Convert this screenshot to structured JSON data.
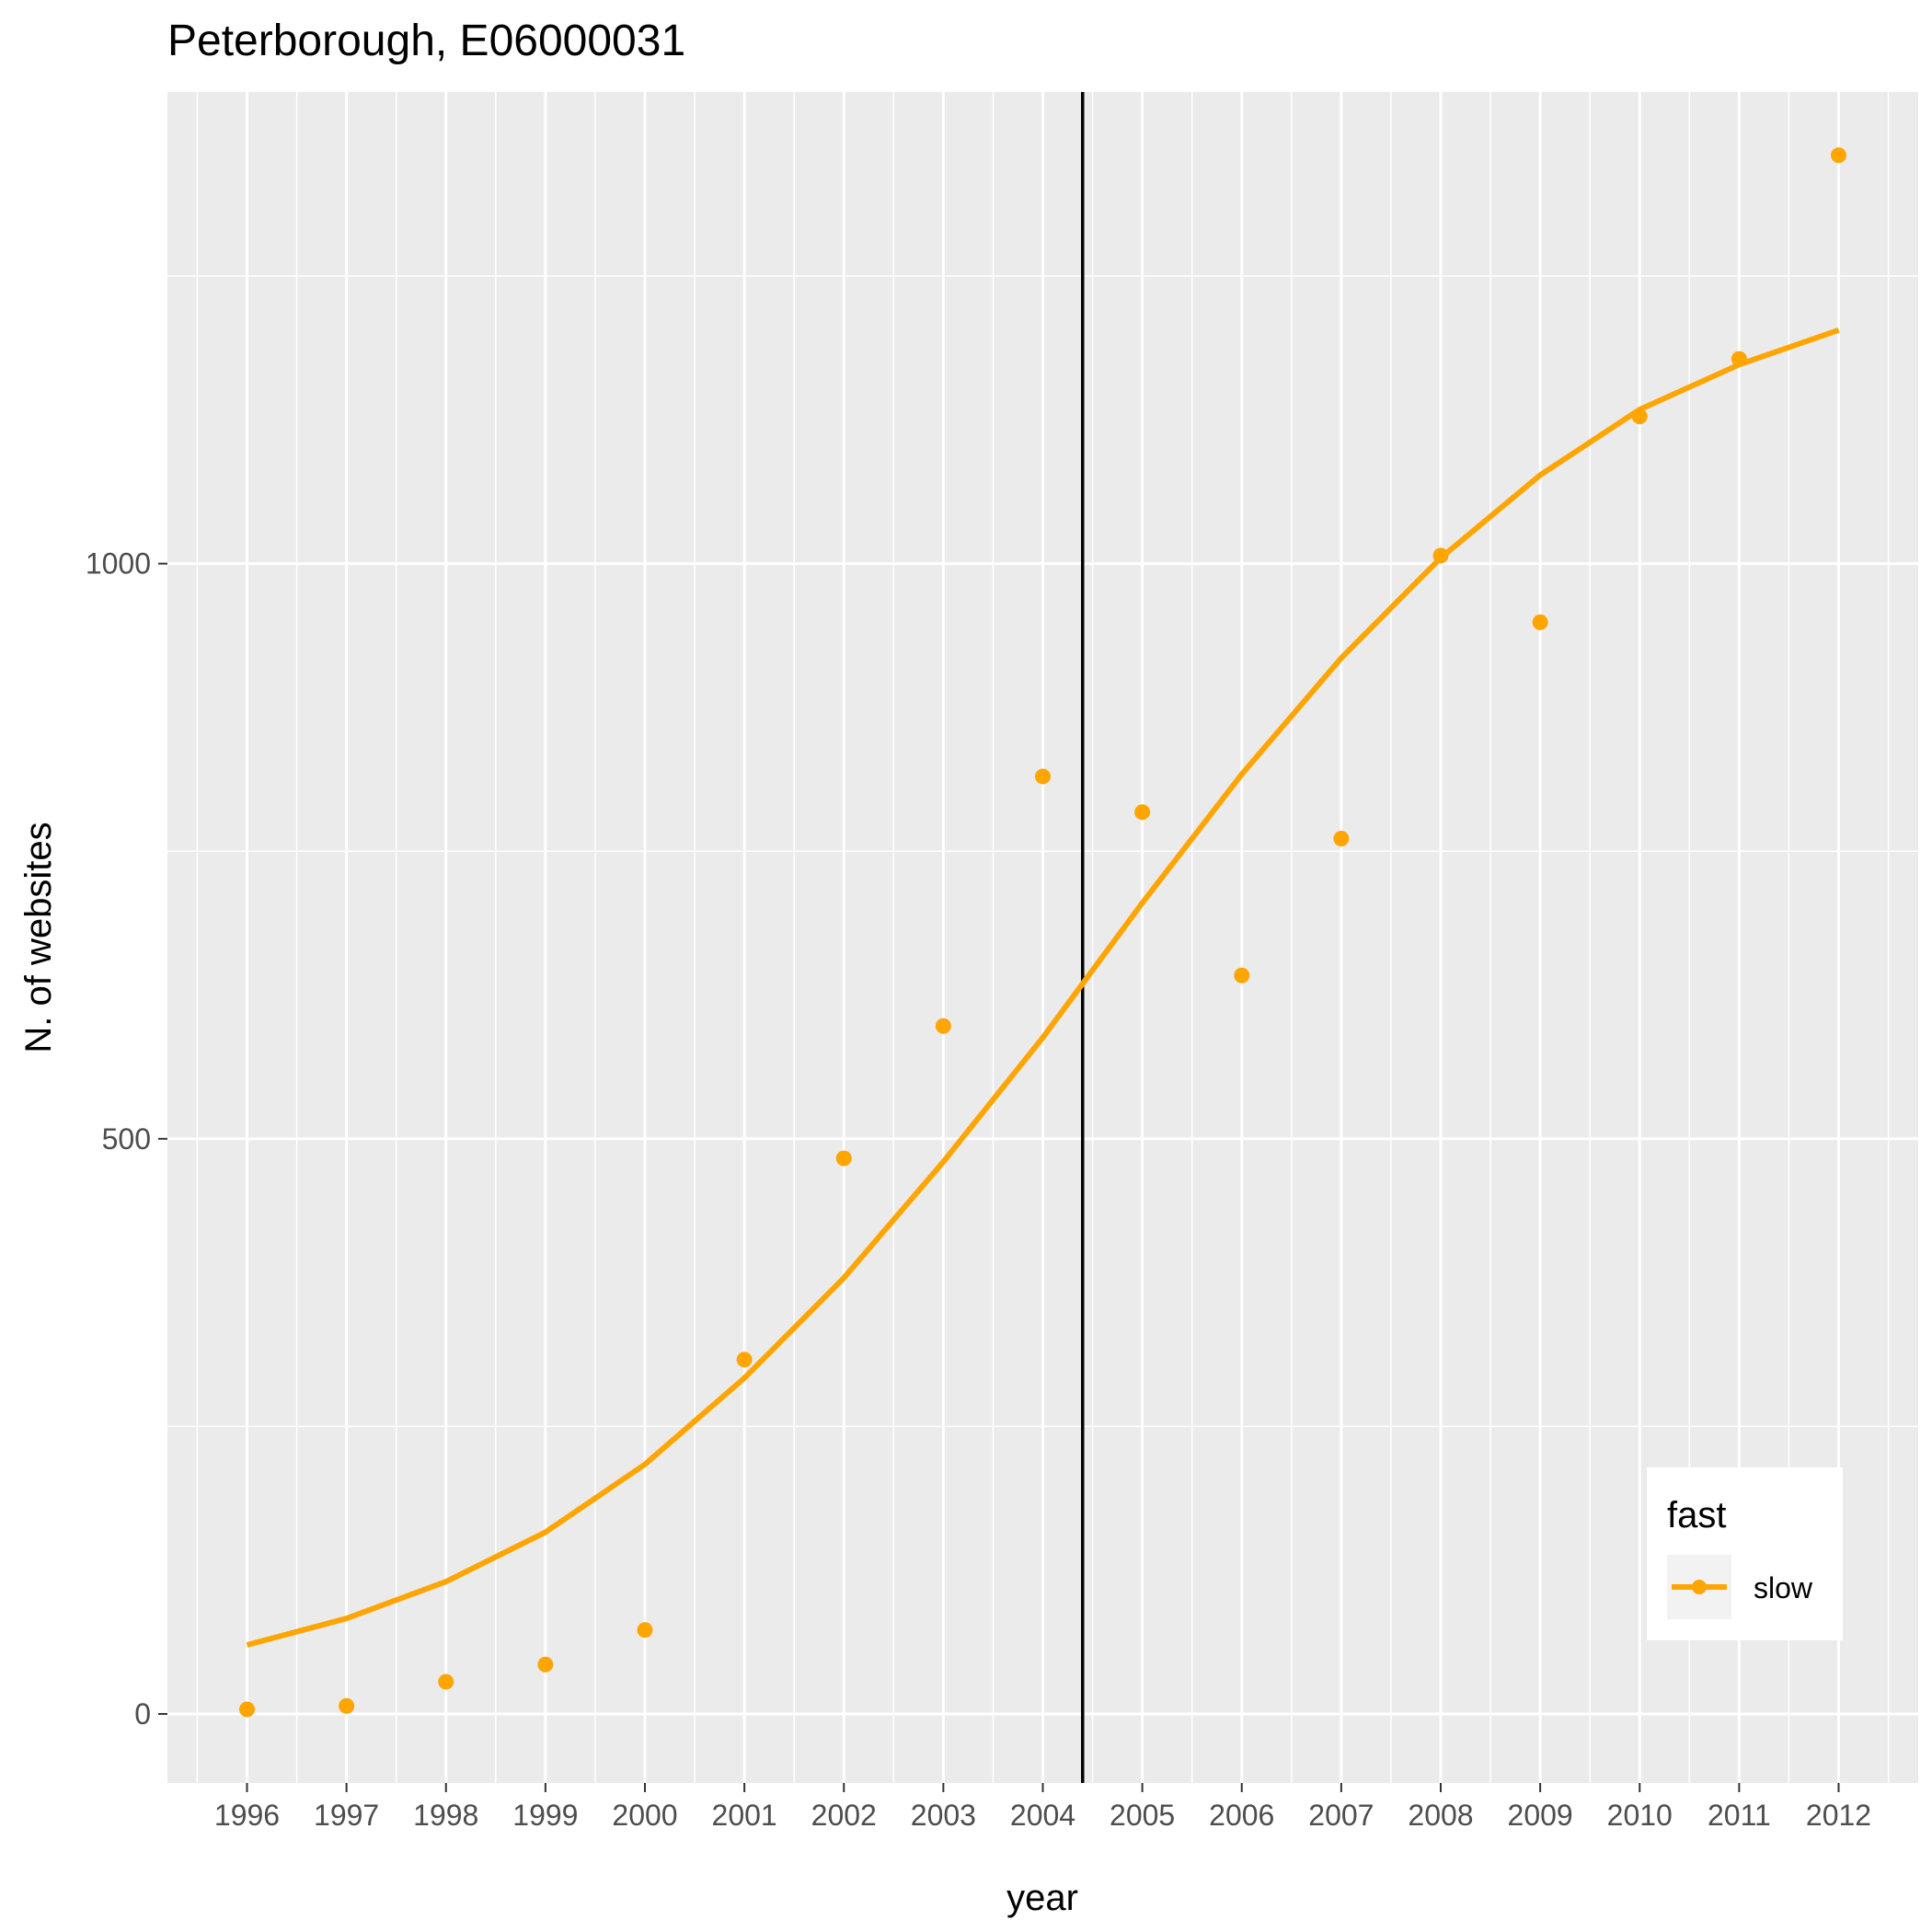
{
  "chart_data": {
    "type": "line",
    "title": "Peterborough, E06000031",
    "xlabel": "year",
    "ylabel": "N. of websites",
    "x": [
      1996,
      1997,
      1998,
      1999,
      2000,
      2001,
      2002,
      2003,
      2004,
      2005,
      2006,
      2007,
      2008,
      2009,
      2010,
      2011,
      2012
    ],
    "xlim": [
      1995.2,
      2012.8
    ],
    "ylim": [
      -60,
      1410
    ],
    "yticks": [
      0,
      500,
      1000
    ],
    "grid": true,
    "vline": 2004.4,
    "series": [
      {
        "name": "slow",
        "color": "#FFA500",
        "points": [
          4,
          7,
          28,
          43,
          73,
          308,
          483,
          598,
          815,
          784,
          642,
          761,
          1007,
          949,
          1128,
          1178,
          1355
        ],
        "smooth": [
          60,
          83,
          115,
          158,
          217,
          292,
          379,
          480,
          588,
          705,
          817,
          918,
          1005,
          1077,
          1134,
          1173,
          1203
        ]
      }
    ],
    "legend": {
      "title": "fast",
      "position": "bottom-right",
      "entries": [
        "slow"
      ]
    },
    "colors": {
      "panel_bg": "#EBEBEB",
      "grid": "#FFFFFF",
      "vline": "#000000"
    }
  }
}
